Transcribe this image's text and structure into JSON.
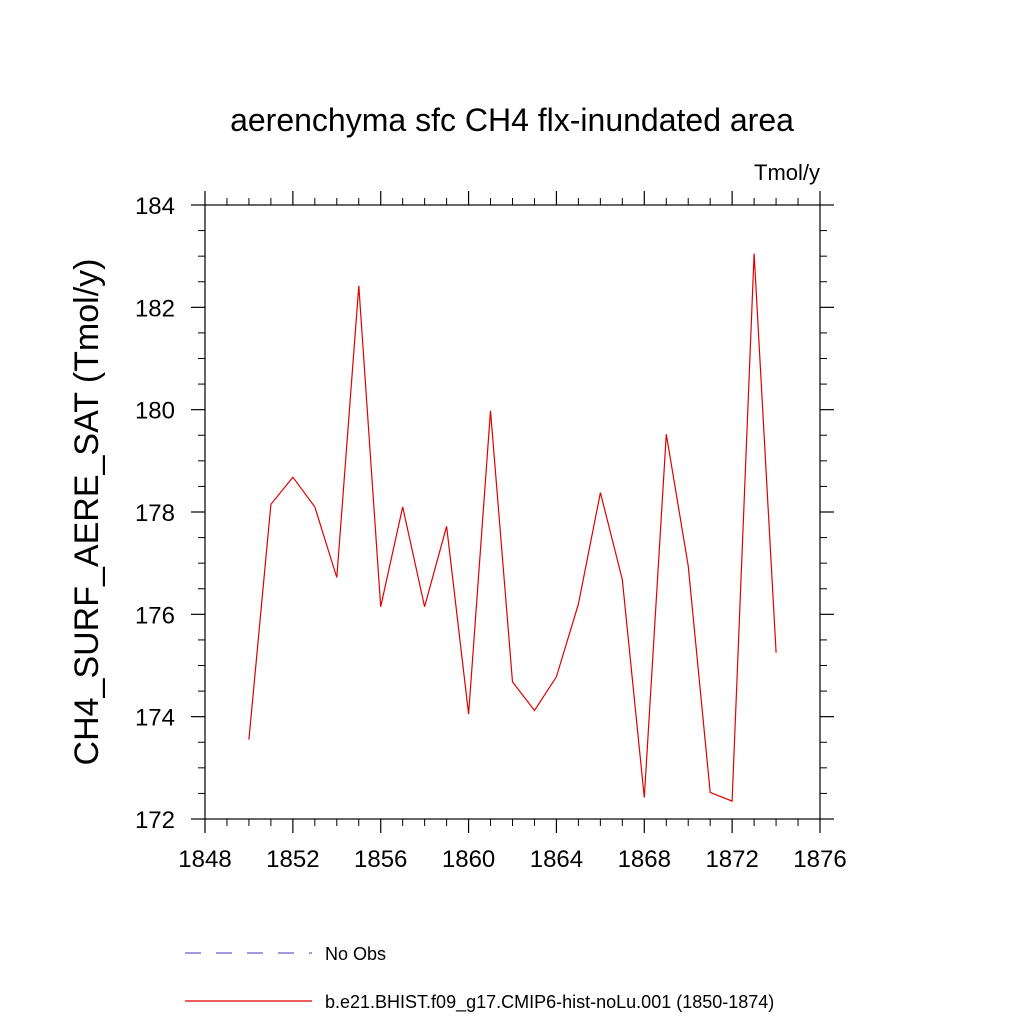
{
  "chart_data": {
    "type": "line",
    "title": "aerenchyma sfc CH4 flx-inundated area",
    "units_label": "Tmol/y",
    "ylabel": "CH4_SURF_AERE_SAT  (Tmol/y)",
    "xlabel": "",
    "xlim": [
      1848,
      1876
    ],
    "ylim": [
      172,
      184
    ],
    "x_ticks": [
      1848,
      1852,
      1856,
      1860,
      1864,
      1868,
      1872,
      1876
    ],
    "x_minor_step": 1,
    "y_ticks": [
      172,
      174,
      176,
      178,
      180,
      182,
      184
    ],
    "y_minor_step": 0.5,
    "grid": false,
    "legend_position": "bottom",
    "series": [
      {
        "name": "No Obs",
        "color": "#6a5acd",
        "style": "dashed",
        "x": [],
        "values": []
      },
      {
        "name": "b.e21.BHIST.f09_g17.CMIP6-hist-noLu.001 (1850-1874)",
        "color": "#e00000",
        "style": "solid",
        "x": [
          1850,
          1851,
          1852,
          1853,
          1854,
          1855,
          1856,
          1857,
          1858,
          1859,
          1860,
          1861,
          1862,
          1863,
          1864,
          1865,
          1866,
          1867,
          1868,
          1869,
          1870,
          1871,
          1872,
          1873,
          1874
        ],
        "values": [
          173.55,
          178.15,
          178.68,
          178.1,
          176.72,
          182.42,
          176.15,
          178.1,
          176.15,
          177.72,
          174.05,
          179.98,
          174.68,
          174.12,
          174.78,
          176.2,
          178.38,
          176.68,
          172.42,
          179.52,
          176.95,
          172.52,
          172.35,
          183.05,
          175.25
        ]
      }
    ]
  }
}
